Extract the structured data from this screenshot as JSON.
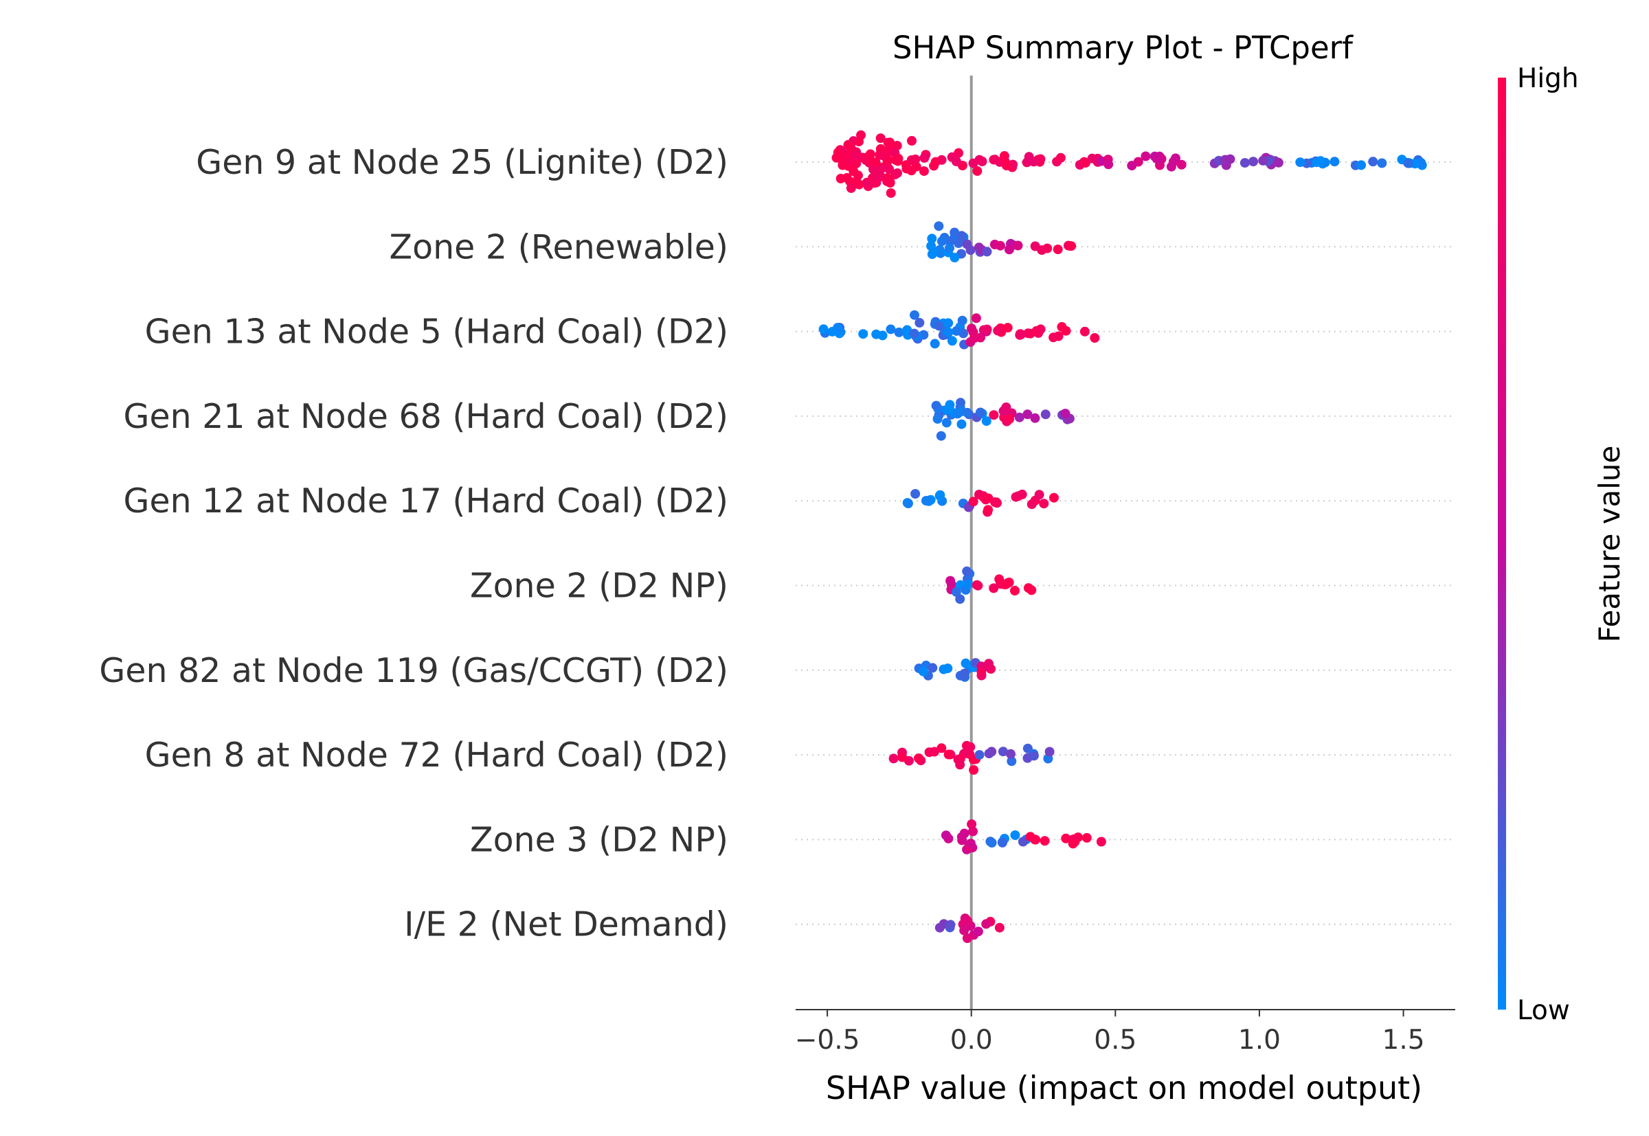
{
  "chart_data": {
    "type": "scatter",
    "subtype": "shap-beeswarm",
    "title": "SHAP Summary Plot - PTCperf",
    "xlabel": "SHAP value (impact on model output)",
    "xlim": [
      -0.61,
      1.68
    ],
    "xticks": [
      {
        "value": -0.5,
        "label": "−0.5"
      },
      {
        "value": 0.0,
        "label": "0.0"
      },
      {
        "value": 0.5,
        "label": "0.5"
      },
      {
        "value": 1.0,
        "label": "1.0"
      },
      {
        "value": 1.5,
        "label": "1.5"
      }
    ],
    "colorbar": {
      "title": "Feature value",
      "high_label": "High",
      "low_label": "Low",
      "high_color": "#ff0051",
      "mid_color": "#c70b9d",
      "low_color": "#008bfb"
    },
    "features": [
      {
        "name": "Gen 9 at Node 25 (Lignite) (D2)",
        "min": -0.48,
        "max": 1.57,
        "segments": [
          {
            "from": -0.48,
            "to": -0.2,
            "feature_value": 0.98,
            "density": 24
          },
          {
            "from": -0.2,
            "to": 0.15,
            "feature_value": 0.95,
            "density": 6
          },
          {
            "from": 0.15,
            "to": 0.45,
            "feature_value": 0.85,
            "density": 3
          },
          {
            "from": 0.45,
            "to": 0.8,
            "feature_value": 0.6,
            "density": 3
          },
          {
            "from": 0.8,
            "to": 1.1,
            "feature_value": 0.3,
            "density": 2
          },
          {
            "from": 1.1,
            "to": 1.57,
            "feature_value": 0.05,
            "density": 1
          }
        ]
      },
      {
        "name": "Zone 2 (Renewable)",
        "min": -0.14,
        "max": 0.35,
        "segments": [
          {
            "from": -0.14,
            "to": -0.02,
            "feature_value": 0.05,
            "density": 14
          },
          {
            "from": -0.02,
            "to": 0.08,
            "feature_value": 0.35,
            "density": 5
          },
          {
            "from": 0.08,
            "to": 0.2,
            "feature_value": 0.6,
            "density": 3
          },
          {
            "from": 0.2,
            "to": 0.35,
            "feature_value": 0.95,
            "density": 3
          }
        ]
      },
      {
        "name": "Gen 13 at Node 5 (Hard Coal) (D2)",
        "min": -0.52,
        "max": 0.44,
        "segments": [
          {
            "from": -0.52,
            "to": -0.2,
            "feature_value": 0.02,
            "density": 3
          },
          {
            "from": -0.2,
            "to": -0.02,
            "feature_value": 0.05,
            "density": 12
          },
          {
            "from": -0.02,
            "to": 0.06,
            "feature_value": 0.75,
            "density": 10
          },
          {
            "from": 0.06,
            "to": 0.44,
            "feature_value": 0.97,
            "density": 4
          }
        ]
      },
      {
        "name": "Gen 21 at Node 68 (Hard Coal) (D2)",
        "min": -0.13,
        "max": 0.36,
        "segments": [
          {
            "from": -0.13,
            "to": -0.03,
            "feature_value": 0.04,
            "density": 14
          },
          {
            "from": -0.03,
            "to": 0.06,
            "feature_value": 0.1,
            "density": 6
          },
          {
            "from": 0.06,
            "to": 0.16,
            "feature_value": 0.85,
            "density": 6
          },
          {
            "from": 0.16,
            "to": 0.36,
            "feature_value": 0.4,
            "density": 2
          }
        ]
      },
      {
        "name": "Gen 12 at Node 17 (Hard Coal) (D2)",
        "min": -0.23,
        "max": 0.3,
        "segments": [
          {
            "from": -0.23,
            "to": -0.04,
            "feature_value": 0.05,
            "density": 4
          },
          {
            "from": -0.04,
            "to": 0.0,
            "feature_value": 0.2,
            "density": 6
          },
          {
            "from": 0.0,
            "to": 0.06,
            "feature_value": 0.97,
            "density": 12
          },
          {
            "from": 0.06,
            "to": 0.3,
            "feature_value": 0.95,
            "density": 4
          }
        ]
      },
      {
        "name": "Zone 2 (D2 NP)",
        "min": -0.12,
        "max": 0.21,
        "segments": [
          {
            "from": -0.12,
            "to": -0.06,
            "feature_value": 0.55,
            "density": 3
          },
          {
            "from": -0.06,
            "to": 0.0,
            "feature_value": 0.08,
            "density": 12
          },
          {
            "from": 0.0,
            "to": 0.21,
            "feature_value": 0.95,
            "density": 5
          }
        ]
      },
      {
        "name": "Gen 82 at Node 119 (Gas/CCGT) (D2)",
        "min": -0.21,
        "max": 0.13,
        "segments": [
          {
            "from": -0.21,
            "to": -0.05,
            "feature_value": 0.05,
            "density": 4
          },
          {
            "from": -0.05,
            "to": 0.02,
            "feature_value": 0.1,
            "density": 12
          },
          {
            "from": 0.02,
            "to": 0.13,
            "feature_value": 0.85,
            "density": 5
          }
        ]
      },
      {
        "name": "Gen 8 at Node 72 (Hard Coal) (D2)",
        "min": -0.28,
        "max": 0.29,
        "segments": [
          {
            "from": -0.28,
            "to": -0.05,
            "feature_value": 0.97,
            "density": 4
          },
          {
            "from": -0.05,
            "to": 0.02,
            "feature_value": 0.97,
            "density": 12
          },
          {
            "from": 0.02,
            "to": 0.29,
            "feature_value": 0.2,
            "density": 4
          }
        ]
      },
      {
        "name": "Zone 3 (D2 NP)",
        "min": -0.11,
        "max": 0.47,
        "segments": [
          {
            "from": -0.11,
            "to": -0.03,
            "feature_value": 0.55,
            "density": 3
          },
          {
            "from": -0.03,
            "to": 0.02,
            "feature_value": 0.7,
            "density": 12
          },
          {
            "from": 0.02,
            "to": 0.2,
            "feature_value": 0.1,
            "density": 4
          },
          {
            "from": 0.2,
            "to": 0.47,
            "feature_value": 0.97,
            "density": 2
          }
        ]
      },
      {
        "name": "I/E 2 (Net Demand)",
        "min": -0.12,
        "max": 0.1,
        "segments": [
          {
            "from": -0.12,
            "to": -0.03,
            "feature_value": 0.3,
            "density": 4
          },
          {
            "from": -0.03,
            "to": 0.03,
            "feature_value": 0.65,
            "density": 12
          },
          {
            "from": 0.03,
            "to": 0.1,
            "feature_value": 0.8,
            "density": 4
          }
        ]
      }
    ]
  }
}
